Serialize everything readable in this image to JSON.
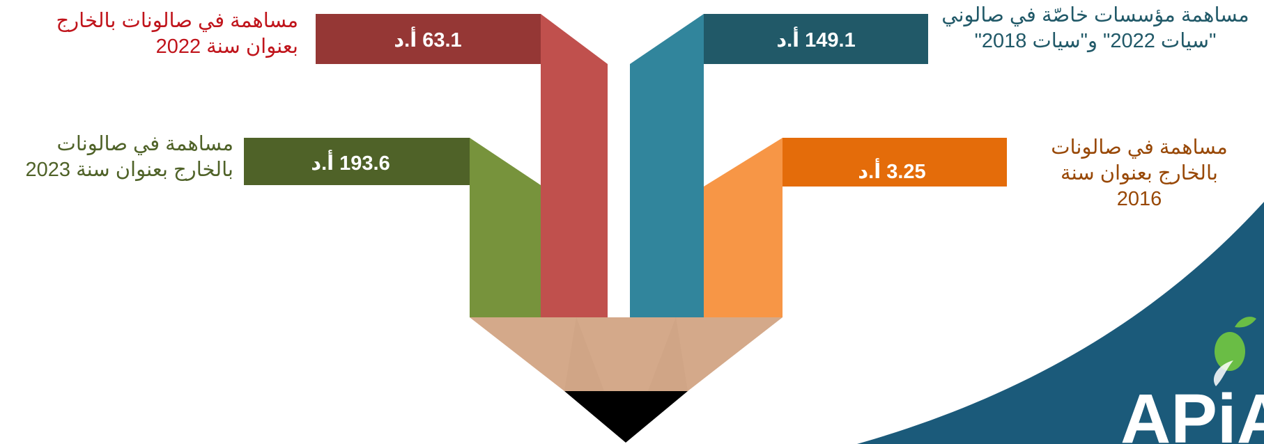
{
  "segments": [
    {
      "id": "red",
      "value_label": "63.1 أ.د",
      "label": "مساهمة في صالونات بالخارج بعنوان سنة 2022",
      "color": "#c0504d",
      "band_color": "#953735"
    },
    {
      "id": "teal",
      "value_label": "149.1 أ.د",
      "label": "مساهمة مؤسسات خاصّة في صالوني \"سيات 2022\" و\"سيات 2018\"",
      "color": "#31859c",
      "band_color": "#215968"
    },
    {
      "id": "green",
      "value_label": "193.6 أ.د",
      "label": "مساهمة في صالونات بالخارج بعنوان سنة 2023",
      "color": "#77933c",
      "band_color": "#4f6228"
    },
    {
      "id": "orange",
      "value_label": "3.25 أ.د",
      "label": "مساهمة في صالونات بالخارج بعنوان سنة 2016",
      "color": "#f79646",
      "band_color": "#e46c0a"
    }
  ],
  "labels": {
    "red_line1": "مساهمة في صالونات بالخارج",
    "red_line2": "بعنوان سنة 2022",
    "teal_line1": "مساهمة مؤسسات خاصّة في صالوني",
    "teal_line2": "\"سيات 2022\" و\"سيات 2018\"",
    "green_line1": "مساهمة في صالونات",
    "green_line2": "بالخارج بعنوان سنة 2023",
    "orange_line1": "مساهمة في صالونات",
    "orange_line2": "بالخارج بعنوان سنة",
    "orange_line3": "2016"
  },
  "label_colors": {
    "red": "#c0141b",
    "teal": "#215968",
    "green": "#4f6228",
    "orange": "#984806"
  },
  "pencil": {
    "wood_color": "#d4a98a",
    "tip_color": "#000000"
  },
  "logo": {
    "text": "APiA",
    "bg_color": "#1b5a7a",
    "accent_color": "#6abd45"
  }
}
